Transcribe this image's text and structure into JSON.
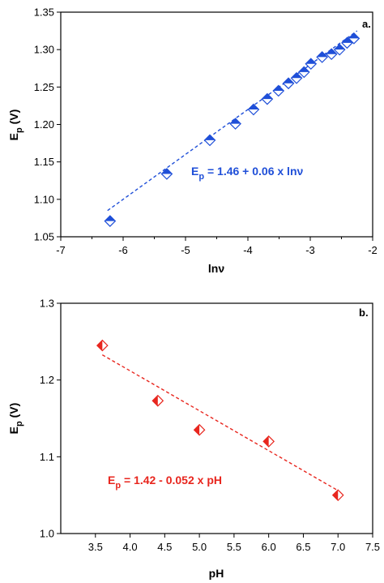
{
  "chart_data": [
    {
      "type": "scatter",
      "panel_label": "a.",
      "xlabel": "lnν",
      "ylabel": {
        "main": "E",
        "sub": "p",
        "rest": " (V)"
      },
      "xlim": [
        -7,
        -2
      ],
      "ylim": [
        1.05,
        1.35
      ],
      "xticks": [
        -7,
        -6,
        -5,
        -4,
        -3,
        -2
      ],
      "yticks": [
        1.05,
        1.1,
        1.15,
        1.2,
        1.25,
        1.3,
        1.35
      ],
      "ytick_decimals": 2,
      "grid": false,
      "color": "#1f4fd8",
      "fit": {
        "intercept": 1.46,
        "slope": 0.06,
        "x_range": [
          -6.25,
          -2.25
        ]
      },
      "equation": {
        "main": "E",
        "sub": "p",
        "rest": " = 1.46 + 0.06 x lnν"
      },
      "series": [
        {
          "x": [
            -6.21,
            -5.3,
            -4.61,
            -4.2,
            -3.91,
            -3.69,
            -3.51,
            -3.35,
            -3.22,
            -3.1,
            -2.99,
            -2.81,
            -2.66,
            -2.53,
            -2.41,
            -2.3
          ],
          "y": [
            1.071,
            1.134,
            1.179,
            1.201,
            1.22,
            1.234,
            1.245,
            1.255,
            1.262,
            1.27,
            1.281,
            1.29,
            1.294,
            1.3,
            1.309,
            1.315
          ]
        }
      ]
    },
    {
      "type": "scatter",
      "panel_label": "b.",
      "xlabel": "pH",
      "ylabel": {
        "main": "E",
        "sub": "p",
        "rest": " (V)"
      },
      "xlim": [
        3.0,
        7.5
      ],
      "ylim": [
        1.0,
        1.3
      ],
      "xticks": [
        3.5,
        4.0,
        4.5,
        5.0,
        5.5,
        6.0,
        6.5,
        7.0,
        7.5
      ],
      "yticks": [
        1.0,
        1.1,
        1.2,
        1.3
      ],
      "ytick_decimals": 1,
      "grid": false,
      "color": "#e8261e",
      "fit": {
        "intercept": 1.42,
        "slope": -0.052,
        "x_range": [
          3.6,
          7.0
        ]
      },
      "equation": {
        "main": "E",
        "sub": "p",
        "rest": " = 1.42 - 0.052 x pH"
      },
      "series": [
        {
          "x": [
            3.6,
            4.4,
            5.0,
            6.0,
            7.0
          ],
          "y": [
            1.245,
            1.173,
            1.135,
            1.12,
            1.05
          ]
        }
      ]
    }
  ]
}
